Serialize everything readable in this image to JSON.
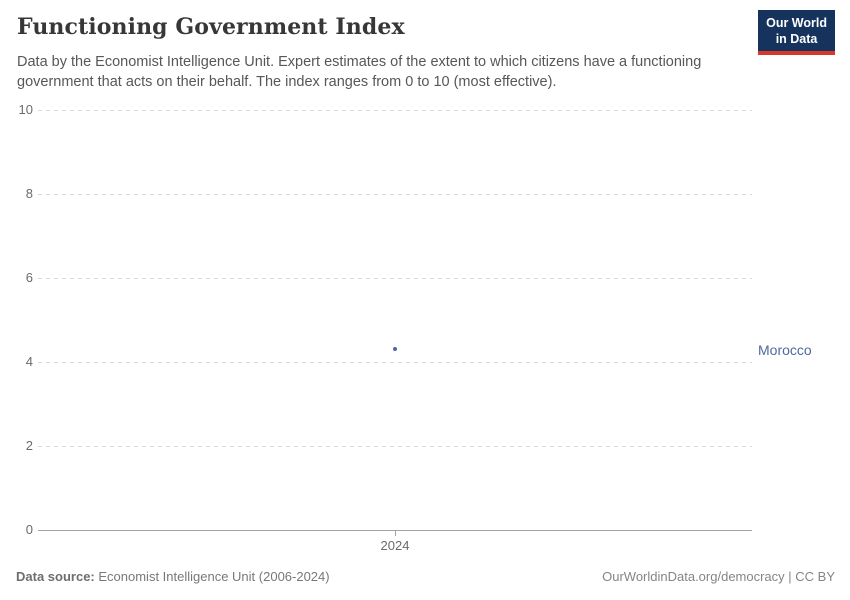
{
  "header": {
    "title": "Functioning Government Index",
    "subtitle": "Data by the Economist Intelligence Unit. Expert estimates of the extent to which citizens have a functioning government that acts on their behalf. The index ranges from 0 to 10 (most effective).",
    "logo": {
      "line1": "Our World",
      "line2": "in Data",
      "bg_color": "#16335e",
      "accent_color": "#d6382e"
    }
  },
  "chart_data": {
    "type": "scatter",
    "title": "Functioning Government Index",
    "x": [
      2024
    ],
    "series": [
      {
        "name": "Morocco",
        "values": [
          4.3
        ],
        "color": "#4c6a9c"
      }
    ],
    "xlabel": "",
    "ylabel": "",
    "ylim": [
      0,
      10
    ],
    "yticks": [
      0,
      2,
      4,
      6,
      8,
      10
    ],
    "xticks": [
      "2024"
    ],
    "grid": "horizontal dashed gridlines, solid zero axis",
    "legend_position": "right entity label",
    "gridline_color": "#dadada",
    "axis_color": "#a3a3a3",
    "tick_label_color": "#6b6b6b"
  },
  "footer": {
    "source_label": "Data source:",
    "source_text": " Economist Intelligence Unit (2006-2024)",
    "credit": "OurWorldinData.org/democracy | CC BY"
  }
}
